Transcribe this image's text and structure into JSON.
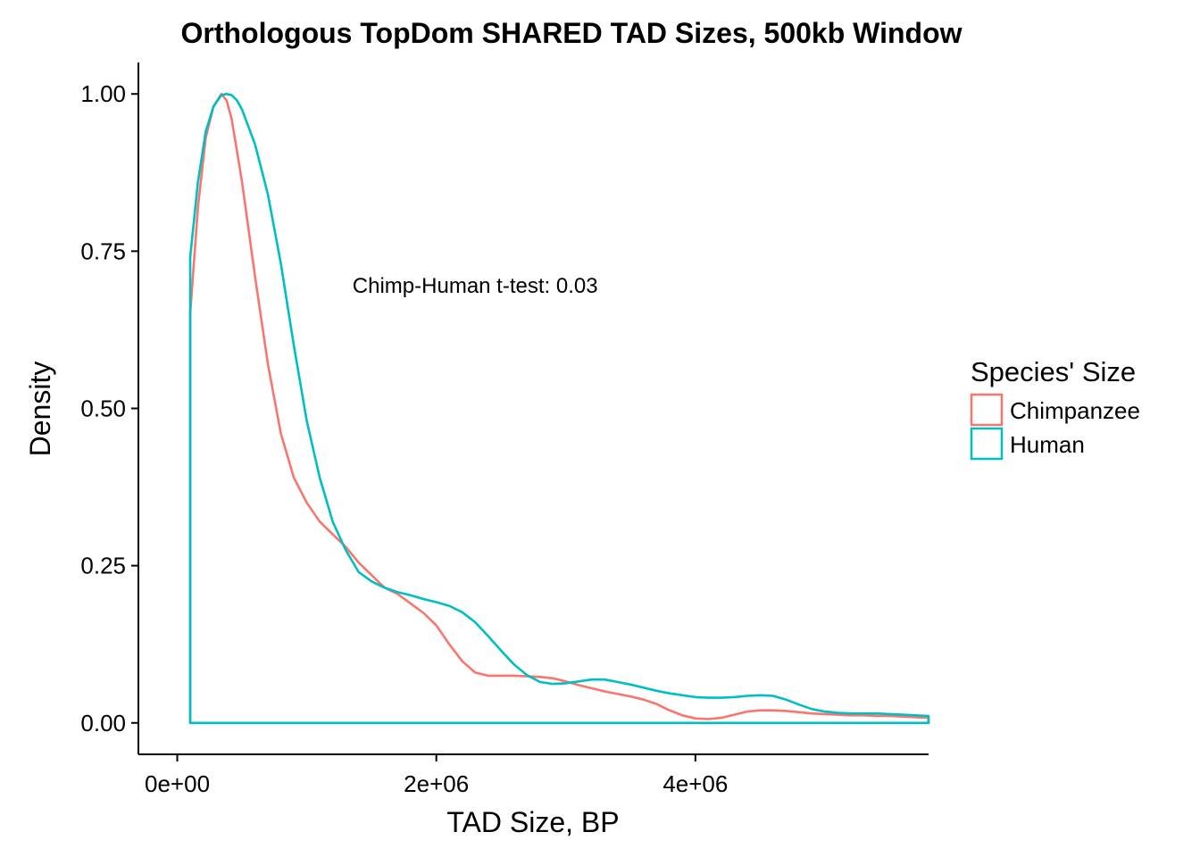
{
  "chart_data": {
    "type": "line",
    "title": "Orthologous TopDom SHARED TAD Sizes, 500kb Window",
    "xlabel": "TAD Size, BP",
    "ylabel": "Density",
    "xlim": [
      -300000,
      5800000
    ],
    "ylim": [
      -0.05,
      1.05
    ],
    "x_ticks": [
      {
        "value": 0,
        "label": "0e+00"
      },
      {
        "value": 2000000,
        "label": "2e+06"
      },
      {
        "value": 4000000,
        "label": "4e+06"
      }
    ],
    "y_ticks": [
      {
        "value": 0.0,
        "label": "0.00"
      },
      {
        "value": 0.25,
        "label": "0.25"
      },
      {
        "value": 0.5,
        "label": "0.50"
      },
      {
        "value": 0.75,
        "label": "0.75"
      },
      {
        "value": 1.0,
        "label": "1.00"
      }
    ],
    "grid": false,
    "annotation": {
      "text": "Chimp-Human t-test: 0.03",
      "x": 2300000,
      "y": 0.695
    },
    "legend": {
      "title": "Species' Size",
      "position": "right"
    },
    "series": [
      {
        "name": "Chimpanzee",
        "color": "#F8766D",
        "x": [
          100000,
          160000,
          220000,
          280000,
          340000,
          380000,
          420000,
          500000,
          600000,
          700000,
          800000,
          900000,
          1000000,
          1100000,
          1200000,
          1300000,
          1400000,
          1500000,
          1600000,
          1700000,
          1800000,
          1900000,
          2000000,
          2100000,
          2200000,
          2300000,
          2400000,
          2500000,
          2600000,
          2700000,
          2800000,
          2900000,
          3000000,
          3100000,
          3200000,
          3300000,
          3400000,
          3500000,
          3600000,
          3700000,
          3800000,
          3900000,
          4000000,
          4100000,
          4200000,
          4300000,
          4400000,
          4500000,
          4600000,
          4700000,
          4800000,
          4900000,
          5000000,
          5100000,
          5200000,
          5300000,
          5400000,
          5500000,
          5600000,
          5700000,
          5800000
        ],
        "y": [
          0.65,
          0.82,
          0.93,
          0.98,
          1.0,
          0.99,
          0.96,
          0.86,
          0.71,
          0.57,
          0.46,
          0.39,
          0.35,
          0.32,
          0.3,
          0.28,
          0.255,
          0.235,
          0.215,
          0.205,
          0.19,
          0.175,
          0.155,
          0.125,
          0.098,
          0.08,
          0.075,
          0.075,
          0.075,
          0.074,
          0.073,
          0.071,
          0.066,
          0.06,
          0.055,
          0.05,
          0.046,
          0.042,
          0.037,
          0.03,
          0.02,
          0.012,
          0.007,
          0.006,
          0.008,
          0.013,
          0.018,
          0.02,
          0.02,
          0.019,
          0.017,
          0.015,
          0.014,
          0.013,
          0.012,
          0.012,
          0.011,
          0.011,
          0.01,
          0.009,
          0.008
        ]
      },
      {
        "name": "Human",
        "color": "#00BFC4",
        "x": [
          100000,
          160000,
          220000,
          280000,
          340000,
          380000,
          420000,
          460000,
          500000,
          600000,
          700000,
          800000,
          900000,
          1000000,
          1100000,
          1200000,
          1300000,
          1400000,
          1500000,
          1600000,
          1700000,
          1800000,
          1900000,
          2000000,
          2100000,
          2200000,
          2300000,
          2400000,
          2500000,
          2600000,
          2700000,
          2800000,
          2900000,
          3000000,
          3100000,
          3200000,
          3300000,
          3400000,
          3500000,
          3600000,
          3700000,
          3800000,
          3900000,
          4000000,
          4100000,
          4200000,
          4300000,
          4400000,
          4500000,
          4600000,
          4700000,
          4800000,
          4900000,
          5000000,
          5100000,
          5200000,
          5300000,
          5400000,
          5500000,
          5600000,
          5700000,
          5800000
        ],
        "y": [
          0.74,
          0.86,
          0.94,
          0.98,
          0.998,
          1.0,
          0.998,
          0.99,
          0.975,
          0.92,
          0.84,
          0.73,
          0.6,
          0.48,
          0.39,
          0.32,
          0.275,
          0.24,
          0.225,
          0.215,
          0.208,
          0.203,
          0.197,
          0.192,
          0.186,
          0.176,
          0.16,
          0.138,
          0.115,
          0.093,
          0.076,
          0.065,
          0.062,
          0.063,
          0.066,
          0.069,
          0.069,
          0.065,
          0.061,
          0.056,
          0.051,
          0.047,
          0.044,
          0.041,
          0.04,
          0.04,
          0.041,
          0.043,
          0.044,
          0.043,
          0.037,
          0.029,
          0.022,
          0.018,
          0.016,
          0.015,
          0.015,
          0.015,
          0.014,
          0.013,
          0.012,
          0.011
        ]
      }
    ]
  }
}
